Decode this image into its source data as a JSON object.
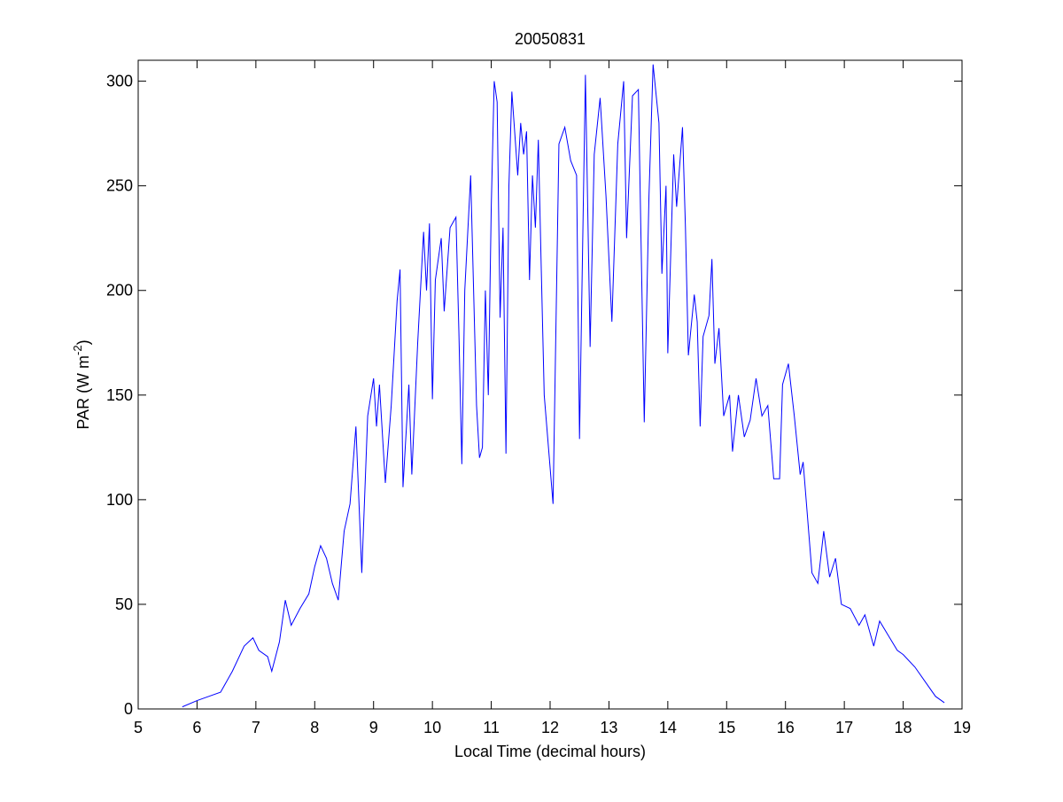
{
  "chart_data": {
    "type": "line",
    "title": "20050831",
    "xlabel": "Local Time (decimal hours)",
    "ylabel": {
      "text": "PAR (W m",
      "superscript": "-2",
      "suffix": ")"
    },
    "xlim": [
      5,
      19
    ],
    "xticks": [
      5,
      6,
      7,
      8,
      9,
      10,
      11,
      12,
      13,
      14,
      15,
      16,
      17,
      18,
      19
    ],
    "ylim": [
      0,
      310
    ],
    "yticks": [
      0,
      50,
      100,
      150,
      200,
      250,
      300
    ],
    "series": [
      {
        "color": "#0000ff",
        "x": [
          5.75,
          6.0,
          6.2,
          6.4,
          6.6,
          6.8,
          6.95,
          7.05,
          7.2,
          7.27,
          7.4,
          7.5,
          7.6,
          7.75,
          7.9,
          8.0,
          8.1,
          8.2,
          8.3,
          8.4,
          8.5,
          8.6,
          8.7,
          8.8,
          8.9,
          9.0,
          9.05,
          9.1,
          9.2,
          9.3,
          9.4,
          9.45,
          9.5,
          9.6,
          9.65,
          9.75,
          9.85,
          9.9,
          9.95,
          10.0,
          10.05,
          10.15,
          10.2,
          10.3,
          10.4,
          10.45,
          10.5,
          10.55,
          10.65,
          10.75,
          10.8,
          10.85,
          10.9,
          10.95,
          11.0,
          11.05,
          11.1,
          11.15,
          11.2,
          11.25,
          11.3,
          11.35,
          11.45,
          11.5,
          11.55,
          11.6,
          11.65,
          11.7,
          11.75,
          11.8,
          11.85,
          11.9,
          12.05,
          12.15,
          12.25,
          12.35,
          12.45,
          12.5,
          12.6,
          12.68,
          12.75,
          12.85,
          12.95,
          13.05,
          13.15,
          13.25,
          13.3,
          13.4,
          13.5,
          13.6,
          13.68,
          13.75,
          13.85,
          13.9,
          13.97,
          14.0,
          14.1,
          14.15,
          14.25,
          14.3,
          14.35,
          14.45,
          14.5,
          14.55,
          14.6,
          14.7,
          14.75,
          14.8,
          14.87,
          14.95,
          15.05,
          15.1,
          15.2,
          15.3,
          15.4,
          15.5,
          15.6,
          15.7,
          15.8,
          15.9,
          15.95,
          16.05,
          16.15,
          16.25,
          16.3,
          16.45,
          16.55,
          16.65,
          16.75,
          16.85,
          16.95,
          17.1,
          17.25,
          17.35,
          17.5,
          17.6,
          17.75,
          17.9,
          18.0,
          18.2,
          18.4,
          18.55,
          18.7
        ],
        "values": [
          1,
          4,
          6,
          8,
          18,
          30,
          34,
          28,
          25,
          18,
          32,
          52,
          40,
          48,
          55,
          68,
          78,
          72,
          60,
          52,
          85,
          98,
          135,
          65,
          140,
          158,
          135,
          155,
          108,
          145,
          195,
          210,
          106,
          155,
          112,
          175,
          228,
          200,
          232,
          148,
          205,
          225,
          190,
          230,
          235,
          180,
          117,
          200,
          255,
          145,
          120,
          125,
          200,
          150,
          240,
          300,
          290,
          187,
          230,
          122,
          250,
          295,
          255,
          280,
          265,
          276,
          205,
          255,
          230,
          272,
          210,
          150,
          98,
          270,
          278,
          262,
          255,
          129,
          303,
          173,
          265,
          292,
          245,
          185,
          270,
          300,
          225,
          293,
          296,
          137,
          245,
          308,
          280,
          208,
          250,
          170,
          265,
          240,
          278,
          230,
          169,
          198,
          185,
          135,
          178,
          188,
          215,
          165,
          182,
          140,
          150,
          123,
          150,
          130,
          138,
          158,
          140,
          145,
          110,
          110,
          155,
          165,
          140,
          112,
          118,
          65,
          60,
          85,
          63,
          72,
          50,
          48,
          40,
          45,
          30,
          42,
          35,
          28,
          26,
          20,
          12,
          6,
          3
        ]
      }
    ]
  }
}
